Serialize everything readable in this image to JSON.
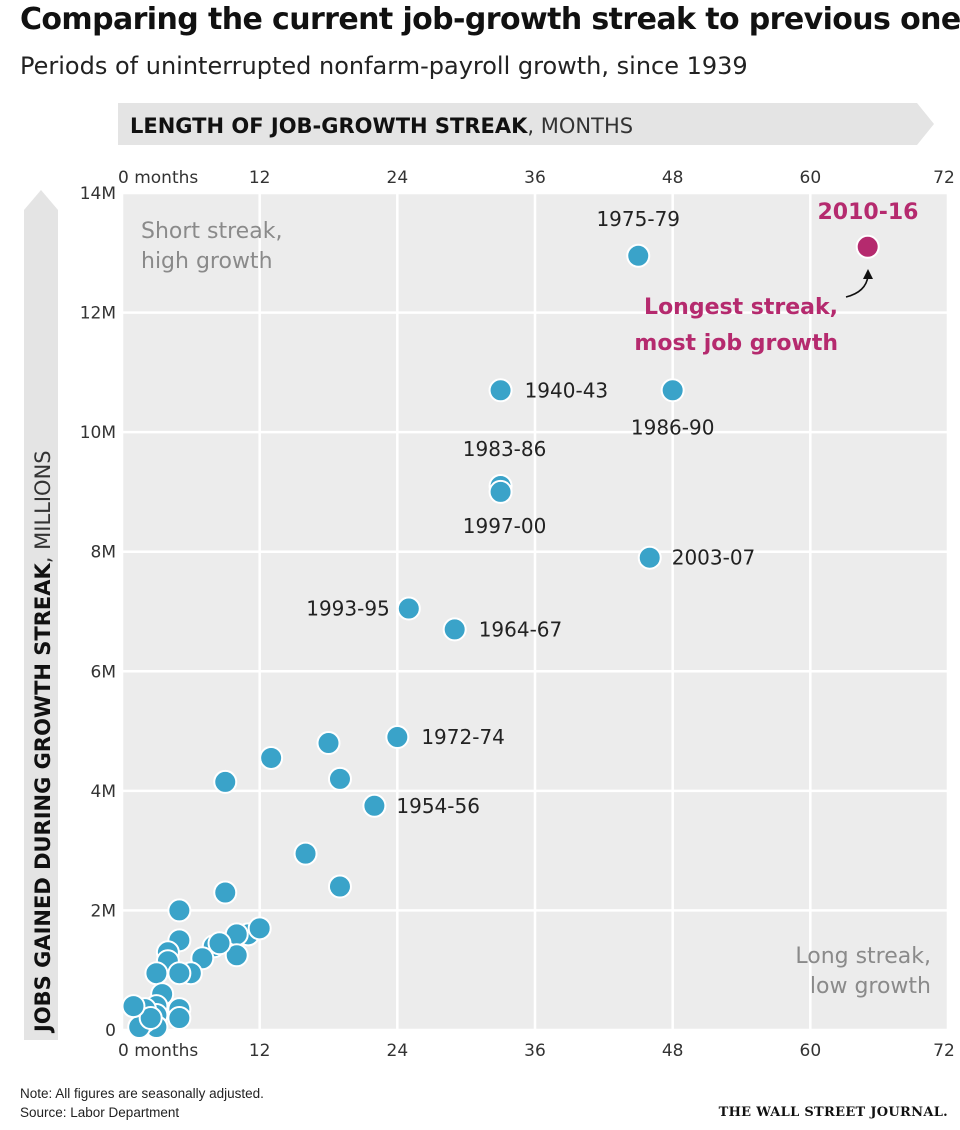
{
  "header": {
    "title": "Comparing the current job-growth streak to previous ones",
    "subtitle": "Periods of uninterrupted nonfarm-payroll growth, since 1939"
  },
  "chart_data": {
    "type": "scatter",
    "x_axis": {
      "label_bold": "LENGTH OF JOB-GROWTH STREAK",
      "label_unit": ", MONTHS",
      "range": [
        0,
        72
      ],
      "ticks": [
        0,
        12,
        24,
        36,
        48,
        60,
        72
      ],
      "tick_labels": [
        "0 months",
        "12",
        "24",
        "36",
        "48",
        "60",
        "72"
      ]
    },
    "y_axis": {
      "label_bold": "JOBS GAINED DURING GROWTH STREAK",
      "label_unit": ", MILLIONS",
      "range": [
        0,
        14
      ],
      "ticks": [
        0,
        2,
        4,
        6,
        8,
        10,
        12,
        14
      ],
      "tick_labels": [
        "0",
        "2M",
        "4M",
        "6M",
        "8M",
        "10M",
        "12M",
        "14M"
      ]
    },
    "grid": true,
    "colors": {
      "point": "#3aa3c9",
      "point_dark": "#1f8cb8",
      "highlight": "#b52a6e",
      "plot_bg": "#ececec",
      "arrow_bg": "#e4e4e4"
    },
    "highlight": {
      "label": "2010-16",
      "x": 65,
      "y": 13.1,
      "note": [
        "Longest streak,",
        "most job growth"
      ]
    },
    "labeled_points": [
      {
        "label": "1975-79",
        "x": 45,
        "y": 12.95
      },
      {
        "label": "1940-43",
        "x": 33,
        "y": 10.7
      },
      {
        "label": "1986-90",
        "x": 48,
        "y": 10.7
      },
      {
        "label": "1983-86",
        "x": 33,
        "y": 9.1
      },
      {
        "label": "1997-00",
        "x": 33,
        "y": 9.0
      },
      {
        "label": "2003-07",
        "x": 46,
        "y": 7.9
      },
      {
        "label": "1993-95",
        "x": 25,
        "y": 7.05
      },
      {
        "label": "1964-67",
        "x": 29,
        "y": 6.7
      },
      {
        "label": "1972-74",
        "x": 24,
        "y": 4.9
      },
      {
        "label": "1954-56",
        "x": 22,
        "y": 3.75
      }
    ],
    "other_points": [
      [
        13,
        4.55
      ],
      [
        18,
        4.8
      ],
      [
        19,
        4.2
      ],
      [
        9,
        4.15
      ],
      [
        16,
        2.95
      ],
      [
        19,
        2.4
      ],
      [
        9,
        2.3
      ],
      [
        5,
        2.0
      ],
      [
        11,
        1.6
      ],
      [
        12,
        1.7
      ],
      [
        10,
        1.6
      ],
      [
        10,
        1.25
      ],
      [
        8,
        1.4
      ],
      [
        8.5,
        1.45
      ],
      [
        7,
        1.2
      ],
      [
        6,
        0.95
      ],
      [
        5,
        1.5
      ],
      [
        4,
        1.3
      ],
      [
        4,
        1.15
      ],
      [
        3,
        0.95
      ],
      [
        5,
        0.95
      ],
      [
        5,
        0.35
      ],
      [
        5,
        0.2
      ],
      [
        3.5,
        0.6
      ],
      [
        3,
        0.4
      ],
      [
        3,
        0.25
      ],
      [
        3,
        0.05
      ],
      [
        2,
        0.35
      ],
      [
        2,
        0.15
      ],
      [
        1.5,
        0.05
      ],
      [
        2.5,
        0.2
      ],
      [
        1,
        0.4
      ]
    ],
    "annotations": {
      "top_left": [
        "Short streak,",
        "high growth"
      ],
      "bottom_right": [
        "Long streak,",
        "low growth"
      ]
    }
  },
  "footer": {
    "note": "Note: All figures are seasonally adjusted.",
    "source": "Source: Labor Department",
    "publisher": "THE WALL STREET JOURNAL."
  }
}
